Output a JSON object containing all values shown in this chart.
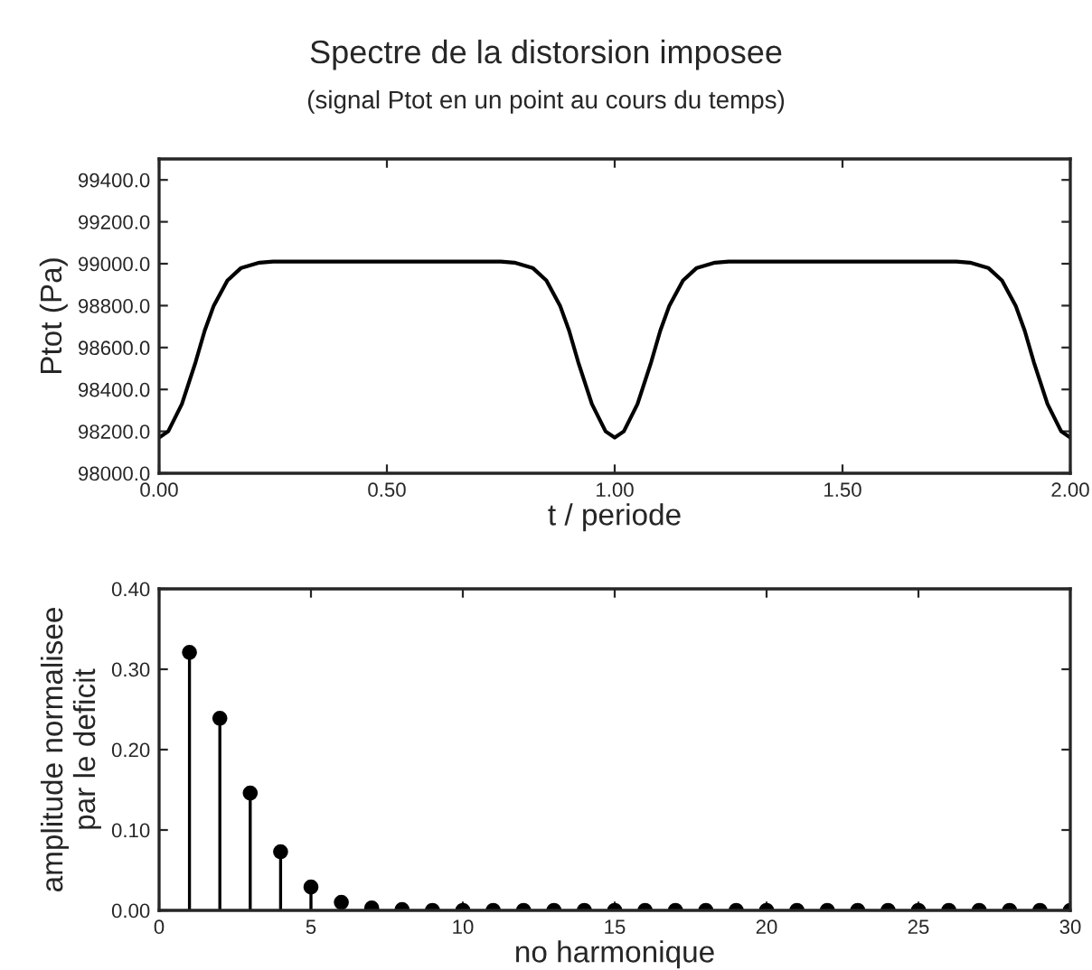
{
  "chart_data": [
    {
      "type": "line",
      "title": "Spectre de la distorsion imposee",
      "subtitle": "(signal Ptot en un point au cours du temps)",
      "xlabel": "t / periode",
      "ylabel": "Ptot (Pa)",
      "x": [
        0,
        0.02,
        0.05,
        0.08,
        0.1,
        0.12,
        0.15,
        0.18,
        0.22,
        0.25,
        0.75,
        0.78,
        0.82,
        0.85,
        0.88,
        0.9,
        0.92,
        0.95,
        0.98,
        1.0,
        1.02,
        1.05,
        1.08,
        1.1,
        1.12,
        1.15,
        1.18,
        1.22,
        1.25,
        1.75,
        1.78,
        1.82,
        1.85,
        1.88,
        1.9,
        1.92,
        1.95,
        1.98,
        2.0
      ],
      "series": [
        {
          "color": "#000000",
          "values": [
            98170,
            98200,
            98330,
            98530,
            98680,
            98800,
            98920,
            98980,
            99005,
            99010,
            99010,
            99005,
            98980,
            98920,
            98800,
            98680,
            98530,
            98330,
            98200,
            98170,
            98200,
            98330,
            98530,
            98680,
            98800,
            98920,
            98980,
            99005,
            99010,
            99010,
            99005,
            98980,
            98920,
            98800,
            98680,
            98530,
            98330,
            98200,
            98170
          ]
        }
      ],
      "xlim": [
        0,
        2
      ],
      "xticks": [
        {
          "value": 0,
          "label": "0.00"
        },
        {
          "value": 0.5,
          "label": "0.50"
        },
        {
          "value": 1,
          "label": "1.00"
        },
        {
          "value": 1.5,
          "label": "1.50"
        },
        {
          "value": 2,
          "label": "2.00"
        }
      ],
      "ylim": [
        98000,
        99500
      ],
      "yticks": [
        {
          "value": 98000,
          "label": "98000.0"
        },
        {
          "value": 98200,
          "label": "98200.0"
        },
        {
          "value": 98400,
          "label": "98400.0"
        },
        {
          "value": 98600,
          "label": "98600.0"
        },
        {
          "value": 98800,
          "label": "98800.0"
        },
        {
          "value": 99000,
          "label": "99000.0"
        },
        {
          "value": 99200,
          "label": "99200.0"
        },
        {
          "value": 99400,
          "label": "99400.0"
        }
      ],
      "grid": false,
      "legend": false,
      "marker": "none",
      "line_style": "solid"
    },
    {
      "type": "lollipop",
      "xlabel": "no harmonique",
      "ylabel": "amplitude normalisee\npar le deficit",
      "x": [
        1,
        2,
        3,
        4,
        5,
        6,
        7,
        8,
        9,
        10,
        11,
        12,
        13,
        14,
        15,
        16,
        17,
        18,
        19,
        20,
        21,
        22,
        23,
        24,
        25,
        26,
        27,
        28,
        29,
        30
      ],
      "series": [
        {
          "color": "#000000",
          "values": [
            0.321,
            0.239,
            0.146,
            0.073,
            0.029,
            0.01,
            0.003,
            0.001,
            0,
            0,
            0,
            0,
            0,
            0,
            0,
            0,
            0,
            0,
            0,
            0,
            0,
            0,
            0,
            0,
            0,
            0,
            0,
            0,
            0,
            0
          ]
        }
      ],
      "xlim": [
        0,
        30
      ],
      "xticks": [
        0,
        5,
        10,
        15,
        20,
        25,
        30
      ],
      "ylim": [
        0,
        0.4
      ],
      "yticks": [
        {
          "value": 0,
          "label": "0.00"
        },
        {
          "value": 0.1,
          "label": "0.10"
        },
        {
          "value": 0.2,
          "label": "0.20"
        },
        {
          "value": 0.3,
          "label": "0.30"
        },
        {
          "value": 0.4,
          "label": "0.40"
        }
      ],
      "grid": false,
      "legend": false,
      "marker": "circle"
    }
  ]
}
